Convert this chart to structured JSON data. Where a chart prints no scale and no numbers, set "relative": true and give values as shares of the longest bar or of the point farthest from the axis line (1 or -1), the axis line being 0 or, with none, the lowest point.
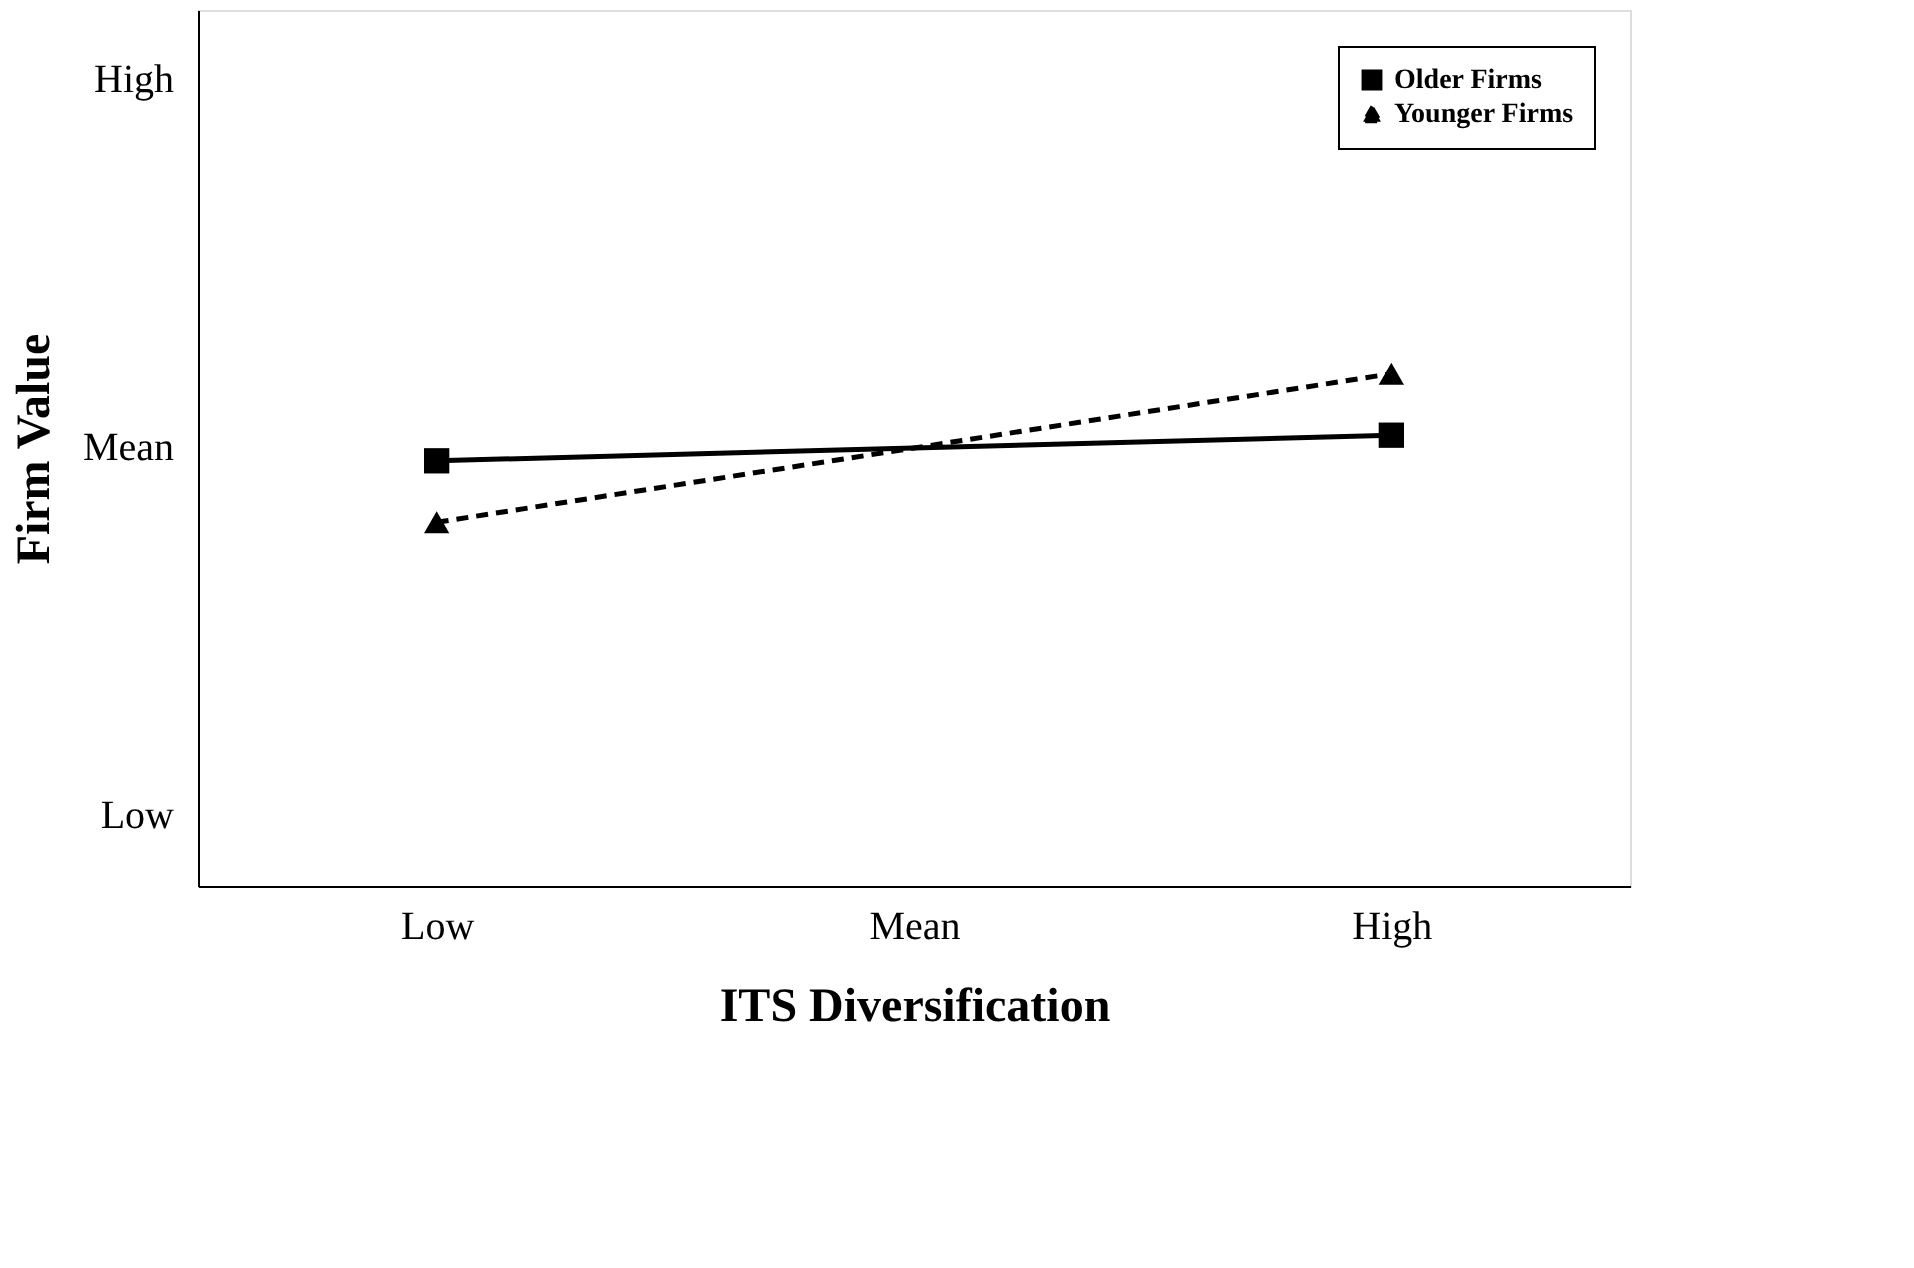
{
  "chart_data": {
    "type": "line",
    "xlabel": "ITS Diversification",
    "ylabel": "Firm Value",
    "relative": true,
    "categories": [
      "Low",
      "Mean",
      "High"
    ],
    "series": [
      {
        "name": "Older Firms",
        "color": "#000000",
        "values": [
          0.83,
          null,
          0.88
        ],
        "marker": "square",
        "line_style": "solid"
      },
      {
        "name": "Younger Firms",
        "color": "#000000",
        "values": [
          0.71,
          null,
          1.0
        ],
        "marker": "triangle",
        "line_style": "dashed"
      }
    ],
    "annotations": [
      "High",
      "Mean",
      "Low"
    ],
    "grid": false,
    "legend": "top right"
  }
}
